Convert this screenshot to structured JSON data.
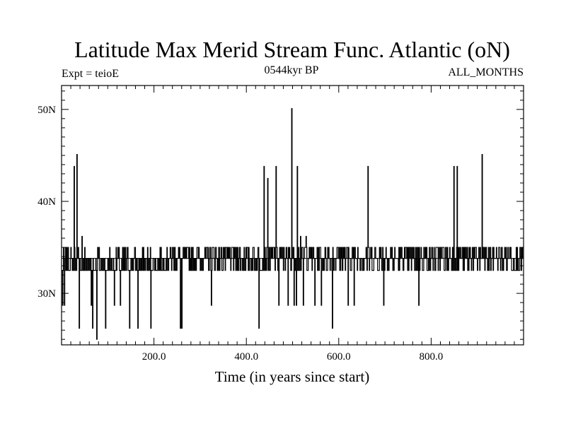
{
  "chart_data": {
    "type": "line",
    "title": "Latitude Max Merid Stream Func. Atlantic (oN)",
    "subtitle_left": "Expt = teioE",
    "subtitle_center": "0544kyr BP",
    "subtitle_right": "ALL_MONTHS",
    "xlabel": "Time (in years since start)",
    "ylabel": "",
    "xlim": [
      0,
      1000
    ],
    "ylim": [
      24.4,
      52.6
    ],
    "x_ticks": [
      200,
      400,
      600,
      800
    ],
    "x_tick_labels": [
      "200.0",
      "400.0",
      "600.0",
      "800.0"
    ],
    "y_ticks": [
      30,
      40,
      50
    ],
    "y_tick_labels": [
      "30N",
      "40N",
      "50N"
    ],
    "grid": false,
    "baseline": 33.8,
    "levels": [
      32.5,
      33.8,
      35.0
    ],
    "series": [
      {
        "spikes": [
          [
            2,
            28.7
          ],
          [
            6,
            28.7
          ],
          [
            27,
            43.8
          ],
          [
            33,
            45.1
          ],
          [
            38,
            26.2
          ],
          [
            44,
            36.2
          ],
          [
            64,
            28.7
          ],
          [
            67,
            26.2
          ],
          [
            76,
            25.0
          ],
          [
            95,
            26.2
          ],
          [
            114,
            28.7
          ],
          [
            127,
            28.7
          ],
          [
            147,
            26.2
          ],
          [
            165,
            26.2
          ],
          [
            193,
            26.2
          ],
          [
            257,
            26.2
          ],
          [
            260,
            26.2
          ],
          [
            324,
            28.7
          ],
          [
            427,
            26.2
          ],
          [
            438,
            43.8
          ],
          [
            446,
            42.5
          ],
          [
            464,
            43.8
          ],
          [
            470,
            28.7
          ],
          [
            490,
            28.7
          ],
          [
            498,
            50.1
          ],
          [
            503,
            28.7
          ],
          [
            508,
            28.7
          ],
          [
            510,
            43.8
          ],
          [
            517,
            36.2
          ],
          [
            523,
            28.7
          ],
          [
            529,
            36.2
          ],
          [
            548,
            28.7
          ],
          [
            562,
            28.7
          ],
          [
            586,
            26.2
          ],
          [
            620,
            28.7
          ],
          [
            633,
            28.7
          ],
          [
            663,
            43.8
          ],
          [
            697,
            28.7
          ],
          [
            773,
            28.7
          ],
          [
            849,
            43.8
          ],
          [
            856,
            43.8
          ],
          [
            910,
            45.1
          ]
        ]
      }
    ]
  }
}
